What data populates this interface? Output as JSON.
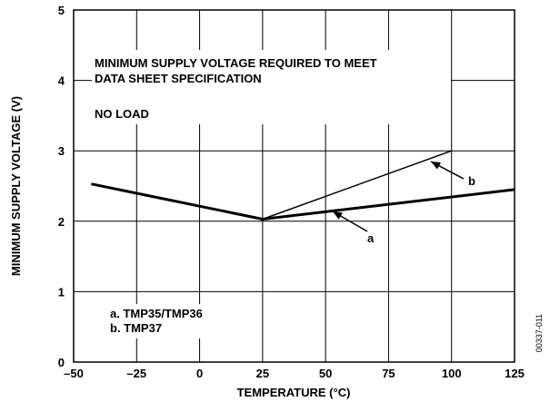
{
  "chart_data": {
    "type": "line",
    "xlabel": "TEMPERATURE (°C)",
    "ylabel": "MINIMUM SUPPLY VOLTAGE (V)",
    "xlim": [
      -50,
      125
    ],
    "ylim": [
      0,
      5
    ],
    "x_ticks": [
      "–50",
      "–25",
      "0",
      "25",
      "50",
      "75",
      "100",
      "125"
    ],
    "y_ticks": [
      "0",
      "1",
      "2",
      "3",
      "4",
      "5"
    ],
    "grid": true,
    "series": [
      {
        "name": "a",
        "x": [
          -43,
          25,
          125
        ],
        "y": [
          2.53,
          2.03,
          2.45
        ]
      },
      {
        "name": "b",
        "x": [
          25,
          100
        ],
        "y": [
          2.03,
          3.0
        ]
      }
    ],
    "annotations": {
      "line1": "MINIMUM SUPPLY VOLTAGE REQUIRED TO MEET",
      "line2": "DATA SHEET SPECIFICATION",
      "line3": "NO LOAD",
      "legend_a": "a.  TMP35/TMP36",
      "legend_b": "b.  TMP37",
      "label_a": "a",
      "label_b": "b",
      "figure_id": "00337-011"
    }
  }
}
